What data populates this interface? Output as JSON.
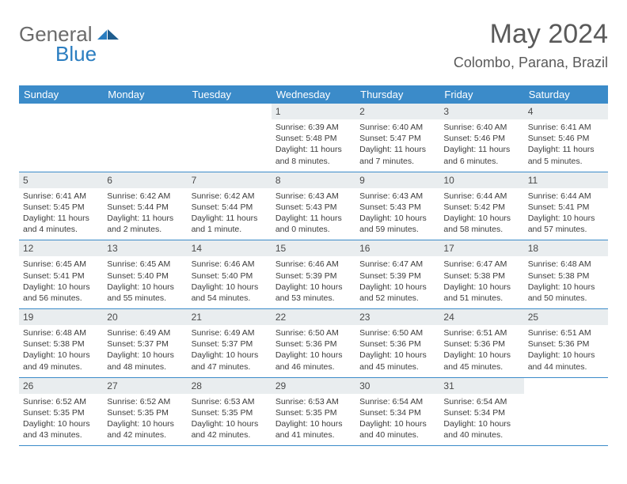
{
  "brand": {
    "part1": "General",
    "part2": "Blue"
  },
  "title": "May 2024",
  "location": "Colombo, Parana, Brazil",
  "colors": {
    "header_bg": "#3b8bc9",
    "daynum_bg": "#e9edef",
    "border": "#3b8bc9",
    "text": "#3c3c3c",
    "title_text": "#5a5a5a",
    "logo_gray": "#6b6b6b",
    "logo_blue": "#2a7dc0"
  },
  "dow": [
    "Sunday",
    "Monday",
    "Tuesday",
    "Wednesday",
    "Thursday",
    "Friday",
    "Saturday"
  ],
  "weeks": [
    [
      {
        "n": "",
        "sr": "",
        "ss": "",
        "dl": ""
      },
      {
        "n": "",
        "sr": "",
        "ss": "",
        "dl": ""
      },
      {
        "n": "",
        "sr": "",
        "ss": "",
        "dl": ""
      },
      {
        "n": "1",
        "sr": "6:39 AM",
        "ss": "5:48 PM",
        "dl": "11 hours and 8 minutes."
      },
      {
        "n": "2",
        "sr": "6:40 AM",
        "ss": "5:47 PM",
        "dl": "11 hours and 7 minutes."
      },
      {
        "n": "3",
        "sr": "6:40 AM",
        "ss": "5:46 PM",
        "dl": "11 hours and 6 minutes."
      },
      {
        "n": "4",
        "sr": "6:41 AM",
        "ss": "5:46 PM",
        "dl": "11 hours and 5 minutes."
      }
    ],
    [
      {
        "n": "5",
        "sr": "6:41 AM",
        "ss": "5:45 PM",
        "dl": "11 hours and 4 minutes."
      },
      {
        "n": "6",
        "sr": "6:42 AM",
        "ss": "5:44 PM",
        "dl": "11 hours and 2 minutes."
      },
      {
        "n": "7",
        "sr": "6:42 AM",
        "ss": "5:44 PM",
        "dl": "11 hours and 1 minute."
      },
      {
        "n": "8",
        "sr": "6:43 AM",
        "ss": "5:43 PM",
        "dl": "11 hours and 0 minutes."
      },
      {
        "n": "9",
        "sr": "6:43 AM",
        "ss": "5:43 PM",
        "dl": "10 hours and 59 minutes."
      },
      {
        "n": "10",
        "sr": "6:44 AM",
        "ss": "5:42 PM",
        "dl": "10 hours and 58 minutes."
      },
      {
        "n": "11",
        "sr": "6:44 AM",
        "ss": "5:41 PM",
        "dl": "10 hours and 57 minutes."
      }
    ],
    [
      {
        "n": "12",
        "sr": "6:45 AM",
        "ss": "5:41 PM",
        "dl": "10 hours and 56 minutes."
      },
      {
        "n": "13",
        "sr": "6:45 AM",
        "ss": "5:40 PM",
        "dl": "10 hours and 55 minutes."
      },
      {
        "n": "14",
        "sr": "6:46 AM",
        "ss": "5:40 PM",
        "dl": "10 hours and 54 minutes."
      },
      {
        "n": "15",
        "sr": "6:46 AM",
        "ss": "5:39 PM",
        "dl": "10 hours and 53 minutes."
      },
      {
        "n": "16",
        "sr": "6:47 AM",
        "ss": "5:39 PM",
        "dl": "10 hours and 52 minutes."
      },
      {
        "n": "17",
        "sr": "6:47 AM",
        "ss": "5:38 PM",
        "dl": "10 hours and 51 minutes."
      },
      {
        "n": "18",
        "sr": "6:48 AM",
        "ss": "5:38 PM",
        "dl": "10 hours and 50 minutes."
      }
    ],
    [
      {
        "n": "19",
        "sr": "6:48 AM",
        "ss": "5:38 PM",
        "dl": "10 hours and 49 minutes."
      },
      {
        "n": "20",
        "sr": "6:49 AM",
        "ss": "5:37 PM",
        "dl": "10 hours and 48 minutes."
      },
      {
        "n": "21",
        "sr": "6:49 AM",
        "ss": "5:37 PM",
        "dl": "10 hours and 47 minutes."
      },
      {
        "n": "22",
        "sr": "6:50 AM",
        "ss": "5:36 PM",
        "dl": "10 hours and 46 minutes."
      },
      {
        "n": "23",
        "sr": "6:50 AM",
        "ss": "5:36 PM",
        "dl": "10 hours and 45 minutes."
      },
      {
        "n": "24",
        "sr": "6:51 AM",
        "ss": "5:36 PM",
        "dl": "10 hours and 45 minutes."
      },
      {
        "n": "25",
        "sr": "6:51 AM",
        "ss": "5:36 PM",
        "dl": "10 hours and 44 minutes."
      }
    ],
    [
      {
        "n": "26",
        "sr": "6:52 AM",
        "ss": "5:35 PM",
        "dl": "10 hours and 43 minutes."
      },
      {
        "n": "27",
        "sr": "6:52 AM",
        "ss": "5:35 PM",
        "dl": "10 hours and 42 minutes."
      },
      {
        "n": "28",
        "sr": "6:53 AM",
        "ss": "5:35 PM",
        "dl": "10 hours and 42 minutes."
      },
      {
        "n": "29",
        "sr": "6:53 AM",
        "ss": "5:35 PM",
        "dl": "10 hours and 41 minutes."
      },
      {
        "n": "30",
        "sr": "6:54 AM",
        "ss": "5:34 PM",
        "dl": "10 hours and 40 minutes."
      },
      {
        "n": "31",
        "sr": "6:54 AM",
        "ss": "5:34 PM",
        "dl": "10 hours and 40 minutes."
      },
      {
        "n": "",
        "sr": "",
        "ss": "",
        "dl": ""
      }
    ]
  ],
  "labels": {
    "sunrise": "Sunrise:",
    "sunset": "Sunset:",
    "daylight": "Daylight:"
  }
}
